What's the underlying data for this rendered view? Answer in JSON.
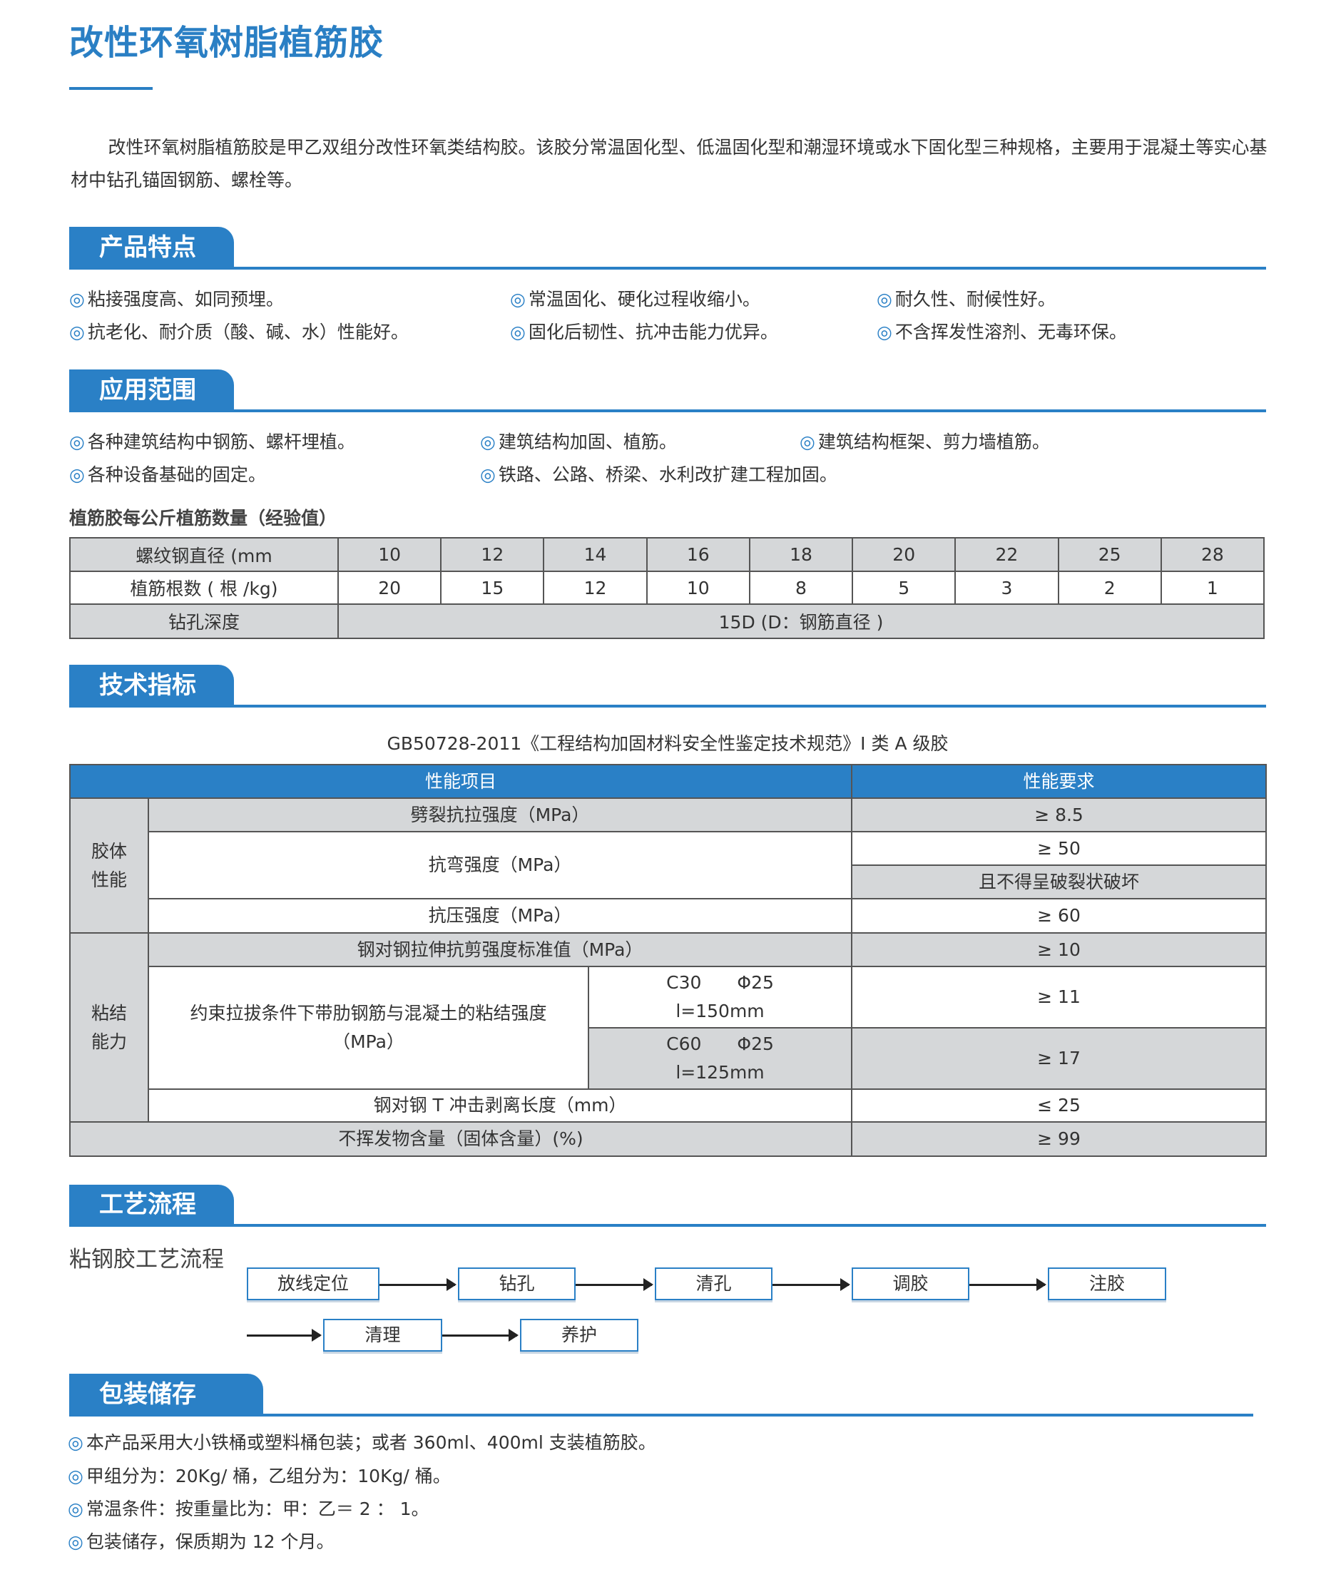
{
  "title": "改性环氧树脂植筋胶",
  "intro": "改性环氧树脂植筋胶是甲乙双组分改性环氧类结构胶。该胶分常温固化型、低温固化型和潮湿环境或水下固化型三种规格，主要用于混凝土等实心基材中钻孔锚固钢筋、螺栓等。",
  "bullet": "◎",
  "accent_color": "#2a80c6",
  "features": {
    "heading": "产品特点",
    "items": [
      "粘接强度高、如同预埋。",
      "常温固化、硬化过程收缩小。",
      "耐久性、耐候性好。",
      "抗老化、耐介质（酸、碱、水）性能好。",
      "固化后韧性、抗冲击能力优异。",
      "不含挥发性溶剂、无毒环保。"
    ]
  },
  "applications": {
    "heading": "应用范围",
    "items": [
      "各种建筑结构中钢筋、螺杆埋植。",
      "建筑结构加固、植筋。",
      "建筑结构框架、剪力墙植筋。",
      "各种设备基础的固定。",
      "铁路、公路、桥梁、水利改扩建工程加固。"
    ]
  },
  "rebar_table": {
    "caption": "植筋胶每公斤植筋数量（经验值）",
    "row_labels": [
      "螺纹钢直径 (mm",
      "植筋根数 ( 根 /kg)",
      "钻孔深度"
    ],
    "diameters": [
      "10",
      "12",
      "14",
      "16",
      "18",
      "20",
      "22",
      "25",
      "28"
    ],
    "counts": [
      "20",
      "15",
      "12",
      "10",
      "8",
      "5",
      "3",
      "2",
      "1"
    ],
    "depth": "15D (D：钢筋直径 )"
  },
  "tech": {
    "heading": "技术指标",
    "standard": "GB50728-2011《工程结构加固材料安全性鉴定技术规范》I 类 A 级胶",
    "header": [
      "性能项目",
      "性能要求"
    ],
    "group1": "胶体\n性能",
    "group2": "粘结\n能力",
    "rows": {
      "split": "劈裂抗拉强度（MPa）",
      "split_v": "≥ 8.5",
      "bend": "抗弯强度（MPa）",
      "bend_v": "≥ 50",
      "bend_v2": "且不得呈破裂状破坏",
      "comp": "抗压强度（MPa）",
      "comp_v": "≥ 60",
      "shear": "钢对钢拉伸抗剪强度标准值（MPa）",
      "shear_v": "≥ 10",
      "bond": "约束拉拔条件下带肋钢筋与混凝土的粘结强度\n（MPa）",
      "c30": "C30　　Φ25\nl=150mm",
      "c30_v": "≥ 11",
      "c60": "C60　　Φ25\nl=125mm",
      "c60_v": "≥ 17",
      "peel": "钢对钢 T 冲击剥离长度（mm）",
      "peel_v": "≤ 25",
      "solid": "不挥发物含量（固体含量）(%)",
      "solid_v": "≥ 99"
    }
  },
  "process": {
    "heading": "工艺流程",
    "subtitle": "粘钢胶工艺流程",
    "steps": [
      "放线定位",
      "钻孔",
      "清孔",
      "调胶",
      "注胶",
      "清理",
      "养护"
    ]
  },
  "packaging": {
    "heading": "包装储存",
    "items": [
      "本产品采用大小铁桶或塑料桶包装；或者 360ml、400ml 支装植筋胶。",
      "甲组分为：20Kg/ 桶，乙组分为：10Kg/ 桶。",
      "常温条件：按重量比为：甲：乙＝ 2 ： 1。",
      "包装储存，保质期为 12 个月。"
    ]
  }
}
